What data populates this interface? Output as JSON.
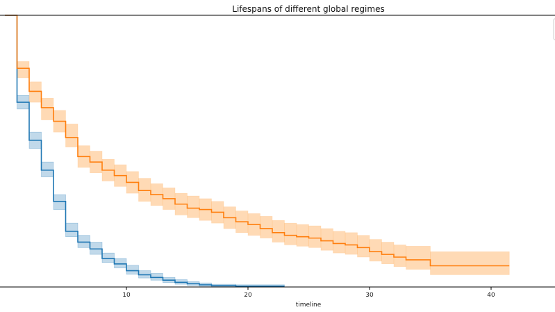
{
  "chart_data": {
    "type": "line",
    "step": true,
    "title": "Lifespans of different global regimes",
    "xlabel": "timeline",
    "ylabel": "",
    "xlim": [
      0,
      41.5
    ],
    "ylim": [
      0,
      1.0
    ],
    "xticks": [
      10,
      20,
      30,
      40
    ],
    "xtick_labels": [
      "10",
      "20",
      "30",
      "40"
    ],
    "grid": false,
    "legend": "top-right (partially cut off, empty)",
    "series": [
      {
        "color": "#1f77b4",
        "band_color": "#1f77b4",
        "x": [
          0,
          1,
          2,
          3,
          4,
          5,
          6,
          7,
          8,
          9,
          10,
          11,
          12,
          13,
          14,
          15,
          16,
          17,
          19,
          23
        ],
        "y": [
          1.0,
          0.68,
          0.54,
          0.43,
          0.315,
          0.205,
          0.165,
          0.14,
          0.105,
          0.085,
          0.06,
          0.045,
          0.035,
          0.025,
          0.017,
          0.012,
          0.008,
          0.005,
          0.003,
          0.003
        ],
        "lower": [
          1.0,
          0.655,
          0.51,
          0.405,
          0.285,
          0.185,
          0.145,
          0.12,
          0.09,
          0.07,
          0.047,
          0.033,
          0.025,
          0.016,
          0.01,
          0.006,
          0.003,
          0.001,
          0.0,
          0.0
        ],
        "upper": [
          1.0,
          0.705,
          0.57,
          0.46,
          0.34,
          0.235,
          0.19,
          0.165,
          0.125,
          0.105,
          0.08,
          0.06,
          0.05,
          0.035,
          0.027,
          0.02,
          0.015,
          0.01,
          0.008,
          0.008
        ]
      },
      {
        "color": "#ff7f0e",
        "band_color": "#ffbb78",
        "x": [
          0,
          1,
          2,
          3,
          4,
          5,
          6,
          7,
          8,
          9,
          10,
          11,
          12,
          13,
          14,
          15,
          16,
          17,
          18,
          19,
          20,
          21,
          22,
          23,
          24,
          25,
          26,
          27,
          28,
          29,
          30,
          31,
          32,
          33,
          35,
          41.5
        ],
        "y": [
          1.0,
          0.805,
          0.72,
          0.66,
          0.61,
          0.55,
          0.48,
          0.46,
          0.43,
          0.41,
          0.385,
          0.355,
          0.34,
          0.325,
          0.305,
          0.29,
          0.285,
          0.275,
          0.255,
          0.24,
          0.23,
          0.215,
          0.2,
          0.19,
          0.185,
          0.18,
          0.17,
          0.16,
          0.155,
          0.145,
          0.13,
          0.12,
          0.11,
          0.1,
          0.078,
          0.078
        ],
        "lower": [
          1.0,
          0.77,
          0.68,
          0.615,
          0.57,
          0.515,
          0.44,
          0.42,
          0.39,
          0.37,
          0.345,
          0.315,
          0.3,
          0.285,
          0.265,
          0.255,
          0.245,
          0.235,
          0.215,
          0.2,
          0.19,
          0.18,
          0.165,
          0.155,
          0.15,
          0.145,
          0.135,
          0.125,
          0.12,
          0.11,
          0.095,
          0.085,
          0.075,
          0.065,
          0.045,
          0.045
        ],
        "upper": [
          1.0,
          0.83,
          0.755,
          0.695,
          0.65,
          0.6,
          0.52,
          0.5,
          0.47,
          0.45,
          0.425,
          0.4,
          0.38,
          0.365,
          0.345,
          0.335,
          0.325,
          0.315,
          0.295,
          0.28,
          0.27,
          0.26,
          0.245,
          0.235,
          0.23,
          0.225,
          0.215,
          0.205,
          0.2,
          0.19,
          0.175,
          0.165,
          0.155,
          0.15,
          0.13,
          0.13
        ]
      }
    ]
  }
}
